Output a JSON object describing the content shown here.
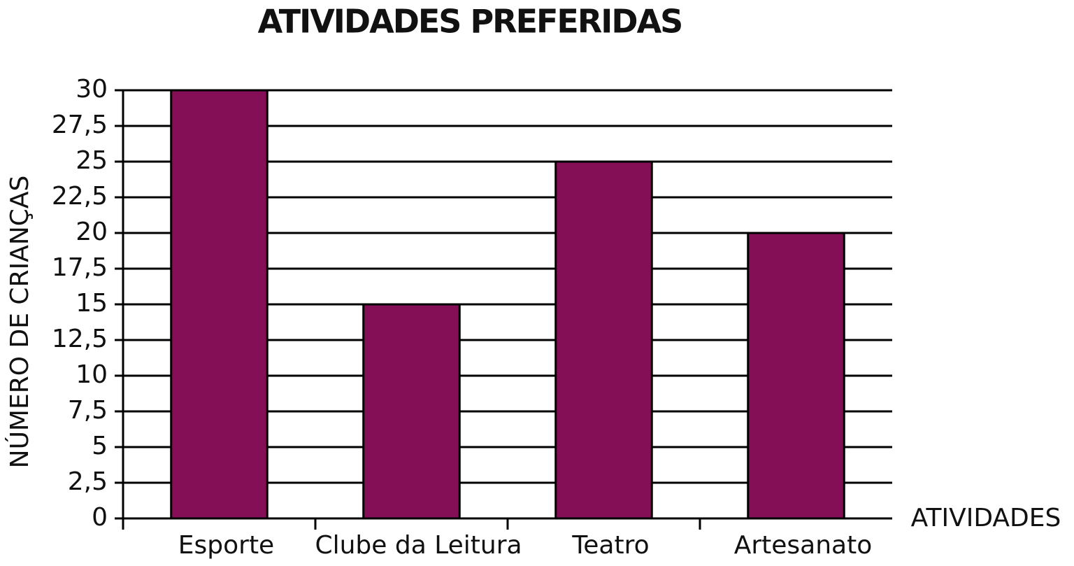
{
  "chart_data": {
    "type": "bar",
    "title": "ATIVIDADES PREFERIDAS",
    "x_label": "ATIVIDADES",
    "y_label": "NÚMERO DE CRIANÇAS",
    "categories": [
      "Esporte",
      "Clube da Leitura",
      "Teatro",
      "Artesanato"
    ],
    "values": [
      30,
      15,
      25,
      20
    ],
    "color": "#850f56",
    "ylim": [
      0,
      30
    ],
    "yticks": [
      0,
      {
        "value": 2.5,
        "label": "2,5"
      },
      5,
      {
        "value": 7.5,
        "label": "7,5"
      },
      10,
      {
        "value": 12.5,
        "label": "12,5"
      },
      15,
      {
        "value": 17.5,
        "label": "17,5"
      },
      20,
      {
        "value": 22.5,
        "label": "22,5"
      },
      25,
      {
        "value": 27.5,
        "label": "27,5"
      },
      30
    ],
    "grid": true
  }
}
